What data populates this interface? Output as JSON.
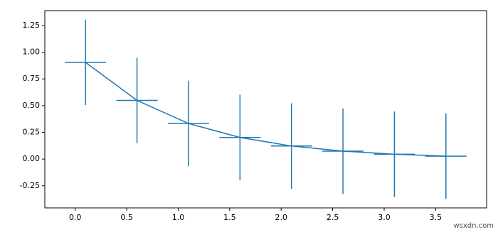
{
  "chart_data": {
    "type": "errorbar",
    "x": [
      0.1,
      0.6,
      1.1,
      1.6,
      2.1,
      2.6,
      3.1,
      3.6
    ],
    "series": [
      {
        "color": "#1f77b4",
        "values": [
          0.905,
          0.549,
          0.333,
          0.202,
          0.122,
          0.074,
          0.045,
          0.027
        ],
        "xerr": [
          0.2,
          0.2,
          0.2,
          0.2,
          0.2,
          0.2,
          0.2,
          0.2
        ],
        "yerr": [
          0.4,
          0.4,
          0.4,
          0.4,
          0.4,
          0.4,
          0.4,
          0.4
        ]
      }
    ],
    "xlim": [
      -0.295,
      3.995
    ],
    "ylim": [
      -0.457,
      1.389
    ],
    "xticks": [
      {
        "value": 0,
        "label": "0.0"
      },
      0.5,
      {
        "value": 1,
        "label": "1.0"
      },
      1.5,
      {
        "value": 2,
        "label": "2.0"
      },
      2.5,
      {
        "value": 3,
        "label": "3.0"
      },
      3.5
    ],
    "yticks": [
      -0.25,
      {
        "value": 0,
        "label": "0.00"
      },
      0.25,
      {
        "value": 0.5,
        "label": "0.50"
      },
      0.75,
      {
        "value": 1,
        "label": "1.00"
      },
      1.25
    ],
    "watermark": "wsxdn.com"
  }
}
